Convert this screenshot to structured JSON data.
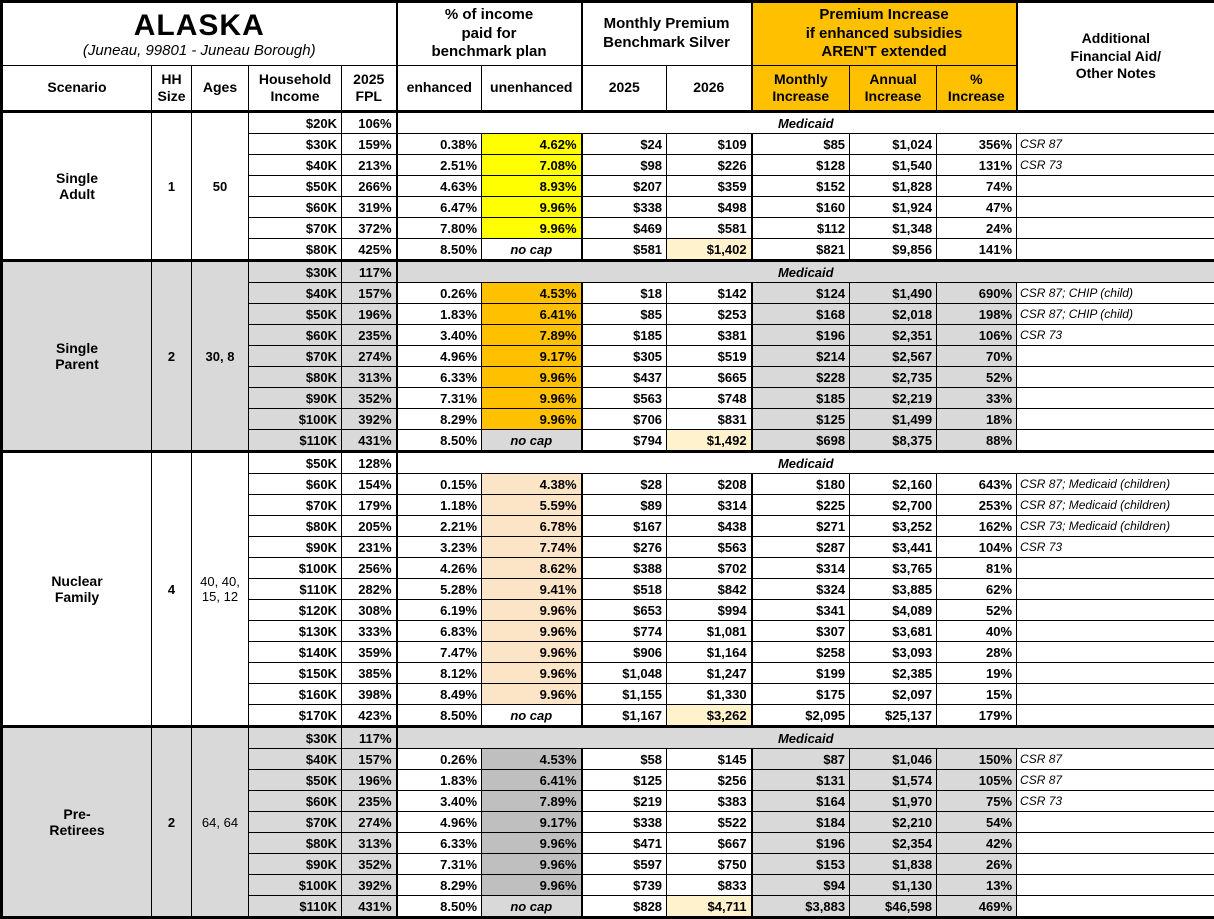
{
  "colors": {
    "header_orange": "#FFC000",
    "hl_yellow": "#FFFF00",
    "hl_orange": "#FFC000",
    "hl_cream": "#FBE5C6",
    "hl_dark_gray": "#BFBFBF",
    "band_gray": "#D9D9D9",
    "hl_2026": "#FFF2CC"
  },
  "header": {
    "title": "ALASKA",
    "subtitle": "(Juneau, 99801 - Juneau Borough)",
    "col_scenario": "Scenario",
    "col_hh": "HH\nSize",
    "col_ages": "Ages",
    "col_income": "Household\nIncome",
    "col_fpl": "2025\nFPL",
    "grp_pct_income": "% of income\npaid for\nbenchmark plan",
    "col_enhanced": "enhanced",
    "col_unenhanced": "unenhanced",
    "grp_premium": "Monthly Premium\nBenchmark Silver",
    "col_2025": "2025",
    "col_2026": "2026",
    "grp_increase": "Premium Increase\nif enhanced subsidies\nAREN'T extended",
    "col_monthly": "Monthly\nIncrease",
    "col_annual": "Annual\nIncrease",
    "col_pct": "%\nIncrease",
    "col_notes": "Additional\nFinancial Aid/\nOther Notes"
  },
  "medicaid_label": "Medicaid",
  "groups": [
    {
      "scenario": "Single\nAdult",
      "hh_size": "1",
      "ages": "50",
      "ages_bold": true,
      "band": "#FFFFFF",
      "unenhanced_fill": "#FFFF00",
      "rows": [
        {
          "income": "$20K",
          "fpl": "106%",
          "medicaid": true
        },
        {
          "income": "$30K",
          "fpl": "159%",
          "enhanced": "0.38%",
          "unenhanced": "4.62%",
          "p2025": "$24",
          "p2026": "$109",
          "monthly": "$85",
          "annual": "$1,024",
          "pct": "356%",
          "notes": "CSR 87"
        },
        {
          "income": "$40K",
          "fpl": "213%",
          "enhanced": "2.51%",
          "unenhanced": "7.08%",
          "p2025": "$98",
          "p2026": "$226",
          "monthly": "$128",
          "annual": "$1,540",
          "pct": "131%",
          "notes": "CSR 73"
        },
        {
          "income": "$50K",
          "fpl": "266%",
          "enhanced": "4.63%",
          "unenhanced": "8.93%",
          "p2025": "$207",
          "p2026": "$359",
          "monthly": "$152",
          "annual": "$1,828",
          "pct": "74%",
          "notes": ""
        },
        {
          "income": "$60K",
          "fpl": "319%",
          "enhanced": "6.47%",
          "unenhanced": "9.96%",
          "p2025": "$338",
          "p2026": "$498",
          "monthly": "$160",
          "annual": "$1,924",
          "pct": "47%",
          "notes": ""
        },
        {
          "income": "$70K",
          "fpl": "372%",
          "enhanced": "7.80%",
          "unenhanced": "9.96%",
          "p2025": "$469",
          "p2026": "$581",
          "monthly": "$112",
          "annual": "$1,348",
          "pct": "24%",
          "notes": ""
        },
        {
          "income": "$80K",
          "fpl": "425%",
          "enhanced": "8.50%",
          "unenhanced": "no cap",
          "nocap": true,
          "p2025": "$581",
          "p2026": "$1,402",
          "hl2026": true,
          "monthly": "$821",
          "annual": "$9,856",
          "pct": "141%",
          "notes": ""
        }
      ]
    },
    {
      "scenario": "Single\nParent",
      "hh_size": "2",
      "ages": "30, 8",
      "ages_bold": true,
      "band": "#D9D9D9",
      "unenhanced_fill": "#FFC000",
      "rows": [
        {
          "income": "$30K",
          "fpl": "117%",
          "medicaid": true
        },
        {
          "income": "$40K",
          "fpl": "157%",
          "enhanced": "0.26%",
          "unenhanced": "4.53%",
          "p2025": "$18",
          "p2026": "$142",
          "monthly": "$124",
          "annual": "$1,490",
          "pct": "690%",
          "notes": "CSR 87; CHIP (child)"
        },
        {
          "income": "$50K",
          "fpl": "196%",
          "enhanced": "1.83%",
          "unenhanced": "6.41%",
          "p2025": "$85",
          "p2026": "$253",
          "monthly": "$168",
          "annual": "$2,018",
          "pct": "198%",
          "notes": "CSR 87; CHIP (child)"
        },
        {
          "income": "$60K",
          "fpl": "235%",
          "enhanced": "3.40%",
          "unenhanced": "7.89%",
          "p2025": "$185",
          "p2026": "$381",
          "monthly": "$196",
          "annual": "$2,351",
          "pct": "106%",
          "notes": "CSR 73"
        },
        {
          "income": "$70K",
          "fpl": "274%",
          "enhanced": "4.96%",
          "unenhanced": "9.17%",
          "p2025": "$305",
          "p2026": "$519",
          "monthly": "$214",
          "annual": "$2,567",
          "pct": "70%",
          "notes": ""
        },
        {
          "income": "$80K",
          "fpl": "313%",
          "enhanced": "6.33%",
          "unenhanced": "9.96%",
          "p2025": "$437",
          "p2026": "$665",
          "monthly": "$228",
          "annual": "$2,735",
          "pct": "52%",
          "notes": ""
        },
        {
          "income": "$90K",
          "fpl": "352%",
          "enhanced": "7.31%",
          "unenhanced": "9.96%",
          "p2025": "$563",
          "p2026": "$748",
          "monthly": "$185",
          "annual": "$2,219",
          "pct": "33%",
          "notes": ""
        },
        {
          "income": "$100K",
          "fpl": "392%",
          "enhanced": "8.29%",
          "unenhanced": "9.96%",
          "p2025": "$706",
          "p2026": "$831",
          "monthly": "$125",
          "annual": "$1,499",
          "pct": "18%",
          "notes": ""
        },
        {
          "income": "$110K",
          "fpl": "431%",
          "enhanced": "8.50%",
          "unenhanced": "no cap",
          "nocap": true,
          "p2025": "$794",
          "p2026": "$1,492",
          "hl2026": true,
          "monthly": "$698",
          "annual": "$8,375",
          "pct": "88%",
          "notes": ""
        }
      ]
    },
    {
      "scenario": "Nuclear\nFamily",
      "hh_size": "4",
      "ages": "40, 40,\n15, 12",
      "ages_bold": false,
      "band": "#FFFFFF",
      "unenhanced_fill": "#FBE5C6",
      "rows": [
        {
          "income": "$50K",
          "fpl": "128%",
          "medicaid": true
        },
        {
          "income": "$60K",
          "fpl": "154%",
          "enhanced": "0.15%",
          "unenhanced": "4.38%",
          "p2025": "$28",
          "p2026": "$208",
          "monthly": "$180",
          "annual": "$2,160",
          "pct": "643%",
          "notes": "CSR 87; Medicaid (children)"
        },
        {
          "income": "$70K",
          "fpl": "179%",
          "enhanced": "1.18%",
          "unenhanced": "5.59%",
          "p2025": "$89",
          "p2026": "$314",
          "monthly": "$225",
          "annual": "$2,700",
          "pct": "253%",
          "notes": "CSR 87; Medicaid (children)"
        },
        {
          "income": "$80K",
          "fpl": "205%",
          "enhanced": "2.21%",
          "unenhanced": "6.78%",
          "p2025": "$167",
          "p2026": "$438",
          "monthly": "$271",
          "annual": "$3,252",
          "pct": "162%",
          "notes": "CSR 73; Medicaid (children)"
        },
        {
          "income": "$90K",
          "fpl": "231%",
          "enhanced": "3.23%",
          "unenhanced": "7.74%",
          "p2025": "$276",
          "p2026": "$563",
          "monthly": "$287",
          "annual": "$3,441",
          "pct": "104%",
          "notes": "CSR 73"
        },
        {
          "income": "$100K",
          "fpl": "256%",
          "enhanced": "4.26%",
          "unenhanced": "8.62%",
          "p2025": "$388",
          "p2026": "$702",
          "monthly": "$314",
          "annual": "$3,765",
          "pct": "81%",
          "notes": ""
        },
        {
          "income": "$110K",
          "fpl": "282%",
          "enhanced": "5.28%",
          "unenhanced": "9.41%",
          "p2025": "$518",
          "p2026": "$842",
          "monthly": "$324",
          "annual": "$3,885",
          "pct": "62%",
          "notes": ""
        },
        {
          "income": "$120K",
          "fpl": "308%",
          "enhanced": "6.19%",
          "unenhanced": "9.96%",
          "p2025": "$653",
          "p2026": "$994",
          "monthly": "$341",
          "annual": "$4,089",
          "pct": "52%",
          "notes": ""
        },
        {
          "income": "$130K",
          "fpl": "333%",
          "enhanced": "6.83%",
          "unenhanced": "9.96%",
          "p2025": "$774",
          "p2026": "$1,081",
          "monthly": "$307",
          "annual": "$3,681",
          "pct": "40%",
          "notes": ""
        },
        {
          "income": "$140K",
          "fpl": "359%",
          "enhanced": "7.47%",
          "unenhanced": "9.96%",
          "p2025": "$906",
          "p2026": "$1,164",
          "monthly": "$258",
          "annual": "$3,093",
          "pct": "28%",
          "notes": ""
        },
        {
          "income": "$150K",
          "fpl": "385%",
          "enhanced": "8.12%",
          "unenhanced": "9.96%",
          "p2025": "$1,048",
          "p2026": "$1,247",
          "monthly": "$199",
          "annual": "$2,385",
          "pct": "19%",
          "notes": ""
        },
        {
          "income": "$160K",
          "fpl": "398%",
          "enhanced": "8.49%",
          "unenhanced": "9.96%",
          "p2025": "$1,155",
          "p2026": "$1,330",
          "monthly": "$175",
          "annual": "$2,097",
          "pct": "15%",
          "notes": ""
        },
        {
          "income": "$170K",
          "fpl": "423%",
          "enhanced": "8.50%",
          "unenhanced": "no cap",
          "nocap": true,
          "p2025": "$1,167",
          "p2026": "$3,262",
          "hl2026": true,
          "monthly": "$2,095",
          "annual": "$25,137",
          "pct": "179%",
          "notes": ""
        }
      ]
    },
    {
      "scenario": "Pre-\nRetirees",
      "hh_size": "2",
      "ages": "64, 64",
      "ages_bold": false,
      "band": "#D9D9D9",
      "unenhanced_fill": "#BFBFBF",
      "rows": [
        {
          "income": "$30K",
          "fpl": "117%",
          "medicaid": true
        },
        {
          "income": "$40K",
          "fpl": "157%",
          "enhanced": "0.26%",
          "unenhanced": "4.53%",
          "p2025": "$58",
          "p2026": "$145",
          "monthly": "$87",
          "annual": "$1,046",
          "pct": "150%",
          "notes": "CSR 87"
        },
        {
          "income": "$50K",
          "fpl": "196%",
          "enhanced": "1.83%",
          "unenhanced": "6.41%",
          "p2025": "$125",
          "p2026": "$256",
          "monthly": "$131",
          "annual": "$1,574",
          "pct": "105%",
          "notes": "CSR 87"
        },
        {
          "income": "$60K",
          "fpl": "235%",
          "enhanced": "3.40%",
          "unenhanced": "7.89%",
          "p2025": "$219",
          "p2026": "$383",
          "monthly": "$164",
          "annual": "$1,970",
          "pct": "75%",
          "notes": "CSR 73"
        },
        {
          "income": "$70K",
          "fpl": "274%",
          "enhanced": "4.96%",
          "unenhanced": "9.17%",
          "p2025": "$338",
          "p2026": "$522",
          "monthly": "$184",
          "annual": "$2,210",
          "pct": "54%",
          "notes": ""
        },
        {
          "income": "$80K",
          "fpl": "313%",
          "enhanced": "6.33%",
          "unenhanced": "9.96%",
          "p2025": "$471",
          "p2026": "$667",
          "monthly": "$196",
          "annual": "$2,354",
          "pct": "42%",
          "notes": ""
        },
        {
          "income": "$90K",
          "fpl": "352%",
          "enhanced": "7.31%",
          "unenhanced": "9.96%",
          "p2025": "$597",
          "p2026": "$750",
          "monthly": "$153",
          "annual": "$1,838",
          "pct": "26%",
          "notes": ""
        },
        {
          "income": "$100K",
          "fpl": "392%",
          "enhanced": "8.29%",
          "unenhanced": "9.96%",
          "p2025": "$739",
          "p2026": "$833",
          "monthly": "$94",
          "annual": "$1,130",
          "pct": "13%",
          "notes": ""
        },
        {
          "income": "$110K",
          "fpl": "431%",
          "enhanced": "8.50%",
          "unenhanced": "no cap",
          "nocap": true,
          "p2025": "$828",
          "p2026": "$4,711",
          "hl2026": true,
          "monthly": "$3,883",
          "annual": "$46,598",
          "pct": "469%",
          "notes": ""
        }
      ]
    }
  ]
}
